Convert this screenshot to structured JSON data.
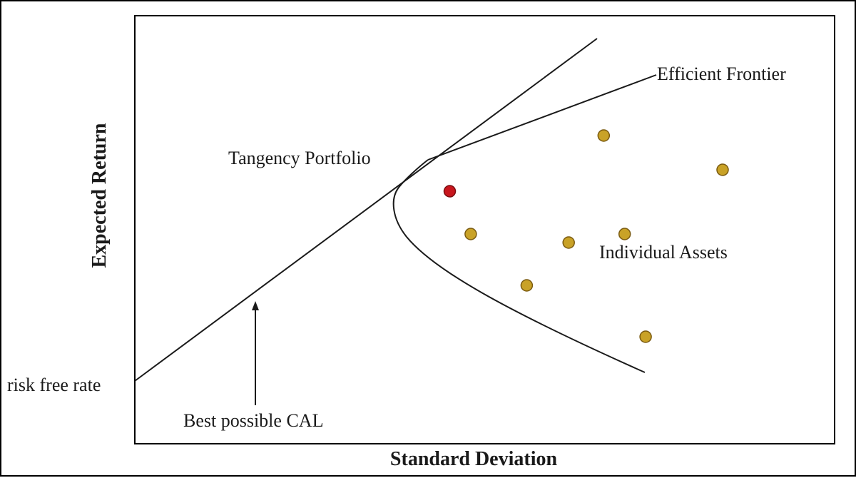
{
  "chart_data": {
    "type": "scatter",
    "title": "",
    "xlabel": "Standard Deviation",
    "ylabel": "Expected Return",
    "grid": false,
    "legend": "none",
    "annotations": {
      "risk_free_rate": "risk free rate",
      "best_cal": "Best possible CAL",
      "tangency": "Tangency Portfolio",
      "efficient_frontier": "Efficient Frontier",
      "individual_assets": "Individual Assets"
    },
    "tangency_portfolio": {
      "x": 0.45,
      "y": 0.59
    },
    "individual_assets": [
      {
        "x": 0.67,
        "y": 0.72
      },
      {
        "x": 0.84,
        "y": 0.64
      },
      {
        "x": 0.48,
        "y": 0.49
      },
      {
        "x": 0.62,
        "y": 0.47
      },
      {
        "x": 0.7,
        "y": 0.49
      },
      {
        "x": 0.56,
        "y": 0.37
      },
      {
        "x": 0.73,
        "y": 0.25
      }
    ],
    "colors": {
      "asset_fill": "#c9a227",
      "asset_stroke": "#7a5a10",
      "tangency_fill": "#c8161d",
      "tangency_stroke": "#7a0d10",
      "line": "#1a1a1a"
    }
  }
}
